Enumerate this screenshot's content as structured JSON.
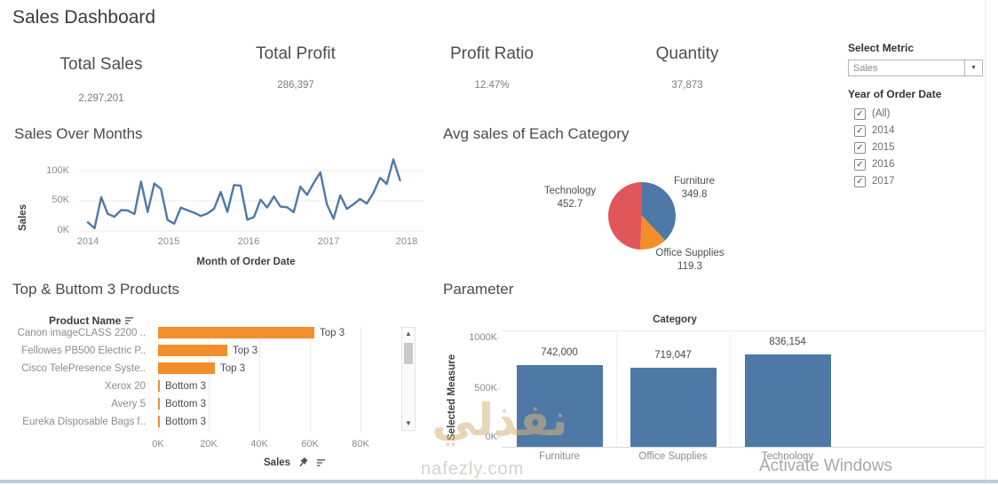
{
  "window": {
    "title": "Sales Dashboard",
    "activate_windows": "Activate Windows",
    "watermark": {
      "arabic": "نفذلي",
      "domain": "nafezly.com"
    }
  },
  "kpis": [
    {
      "label": "Total Sales",
      "value": "2,297,201"
    },
    {
      "label": "Total Profit",
      "value": "286,397"
    },
    {
      "label": "Profit Ratio",
      "value": "12.47%"
    },
    {
      "label": "Quantity",
      "value": "37,873"
    }
  ],
  "controls": {
    "select_metric": {
      "label": "Select Metric",
      "value": "Sales"
    },
    "year_of_order_date": {
      "label": "Year of Order Date",
      "options": [
        {
          "label": "(All)",
          "checked": true
        },
        {
          "label": "2014",
          "checked": true
        },
        {
          "label": "2015",
          "checked": true
        },
        {
          "label": "2016",
          "checked": true
        },
        {
          "label": "2017",
          "checked": true
        }
      ]
    }
  },
  "chart_data": [
    {
      "type": "line",
      "title": "Sales Over Months",
      "xlabel": "Month of Order Date",
      "ylabel": "Sales",
      "x_ticks": [
        "2014",
        "2015",
        "2016",
        "2017",
        "2018"
      ],
      "y_ticks": [
        "0K",
        "50K",
        "100K"
      ],
      "ylim_K": [
        0,
        120
      ],
      "line_color": "#4e79a7",
      "x_unit": "month from Jan 2014 to Dec 2017",
      "monthly_sales_K": [
        14.2,
        4.5,
        55.7,
        28.3,
        23.6,
        34.6,
        33.9,
        27.9,
        81.8,
        31.4,
        78.6,
        69.5,
        18.2,
        12.0,
        38.7,
        34.2,
        30.1,
        24.8,
        28.8,
        36.9,
        64.6,
        31.4,
        76.0,
        74.9,
        18.5,
        23.0,
        51.7,
        38.8,
        57.0,
        40.3,
        39.3,
        31.1,
        73.4,
        59.7,
        79.4,
        97.0,
        44.0,
        20.3,
        58.9,
        36.5,
        44.3,
        53.0,
        45.3,
        63.1,
        87.9,
        77.8,
        118.4,
        83.8
      ]
    },
    {
      "type": "pie",
      "title": "Avg sales of Each Category",
      "slices": [
        {
          "label": "Furniture",
          "value": 349.8,
          "value_label": "349.8",
          "color": "#4e79a7"
        },
        {
          "label": "Office Supplies",
          "value": 119.3,
          "value_label": "119.3",
          "color": "#f28e2b"
        },
        {
          "label": "Technology",
          "value": 452.7,
          "value_label": "452.7",
          "color": "#e15759"
        }
      ]
    },
    {
      "type": "bar",
      "orientation": "horizontal",
      "title": "Top & Buttom 3 Products",
      "row_header": "Product Name",
      "xlabel": "Sales",
      "x_ticks": [
        "0K",
        "20K",
        "40K",
        "60K",
        "80K"
      ],
      "xlim_K": [
        0,
        97
      ],
      "bar_color": "#f28e2b",
      "rows": [
        {
          "name": "Canon imageCLASS 2200 ..",
          "value_K": 61.6,
          "tag": "Top 3"
        },
        {
          "name": "Fellowes PB500 Electric P..",
          "value_K": 27.4,
          "tag": "Top 3"
        },
        {
          "name": "Cisco TelePresence Syste..",
          "value_K": 22.6,
          "tag": "Top 3"
        },
        {
          "name": "Xerox 20",
          "value_K": 0.3,
          "tag": "Bottom 3"
        },
        {
          "name": "Avery 5",
          "value_K": 0.3,
          "tag": "Bottom 3"
        },
        {
          "name": "Eureka Disposable Bags f..",
          "value_K": 0.2,
          "tag": "Bottom 3"
        }
      ]
    },
    {
      "type": "bar",
      "orientation": "vertical",
      "title": "Parameter",
      "panel_title": "Category",
      "ylabel": "Selected Measure",
      "y_ticks": [
        "0K",
        "500K",
        "1000K"
      ],
      "ylim": [
        0,
        1050000
      ],
      "bar_color": "#4e79a7",
      "categories": [
        "Furniture",
        "Office Supplies",
        "Technology"
      ],
      "values": [
        742000,
        719047,
        836154
      ],
      "value_labels": [
        "742,000",
        "719,047",
        "836,154"
      ]
    }
  ]
}
